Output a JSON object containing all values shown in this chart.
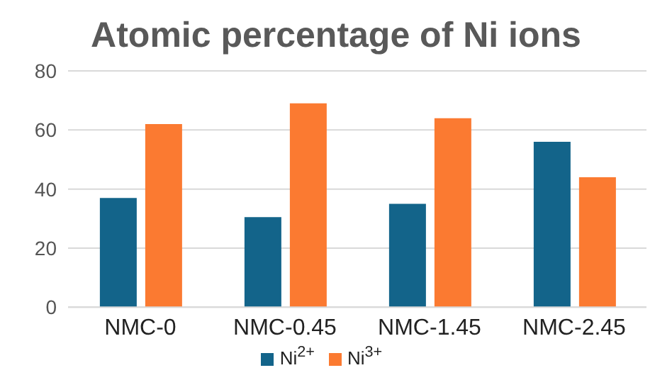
{
  "chart_data": {
    "type": "bar",
    "title": "Atomic percentage of Ni ions",
    "categories": [
      "NMC-0",
      "NMC-0.45",
      "NMC-1.45",
      "NMC-2.45"
    ],
    "series": [
      {
        "name": "Ni$^{2+}$",
        "color": "#13648a",
        "values": [
          37,
          30.5,
          35,
          56
        ]
      },
      {
        "name": "Ni$^{3+}$",
        "color": "#fb7a31",
        "values": [
          62,
          69,
          64,
          44
        ]
      }
    ],
    "ylim": [
      0,
      80
    ],
    "yticks": [
      0,
      20,
      40,
      60,
      80
    ],
    "grid": "y",
    "legend": "bottom"
  }
}
